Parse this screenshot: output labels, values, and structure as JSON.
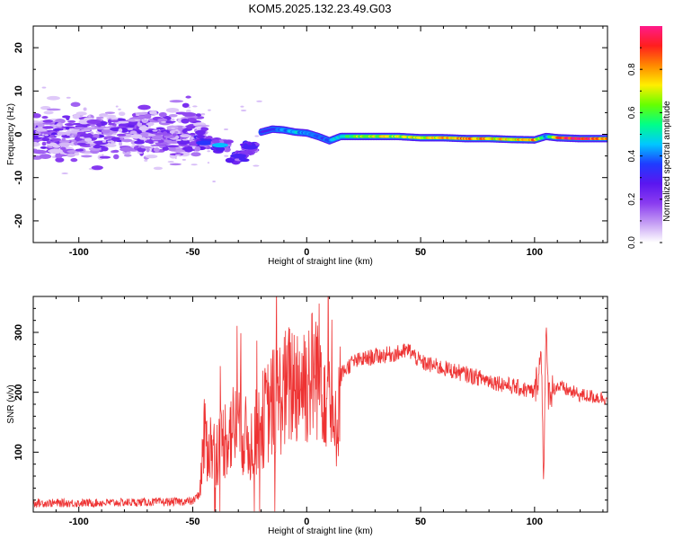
{
  "title": "KOM5.2025.132.23.49.G03",
  "colors": {
    "series_line": "#ee3333",
    "axis": "#000000",
    "colormap": [
      "#ffffff",
      "#c49cf4",
      "#8a3cf0",
      "#5a16f0",
      "#1f3cff",
      "#00c8ff",
      "#00ff88",
      "#66ff00",
      "#ffee00",
      "#ff8800",
      "#ff1e1e",
      "#ff1a8a"
    ]
  },
  "chart_data": [
    {
      "type": "heatmap",
      "xlabel": "Height of straight line (km)",
      "ylabel": "Frequency (Hz)",
      "xlim": [
        -120,
        132
      ],
      "ylim": [
        -25,
        25
      ],
      "x_ticks": [
        -100,
        -50,
        0,
        50,
        100
      ],
      "y_ticks": [
        -20,
        -10,
        0,
        10,
        20
      ],
      "grid": false,
      "colorbar": {
        "label": "Normalized spectral amplitude",
        "range": [
          0,
          1
        ],
        "ticks": [
          "0.0",
          "0.2",
          "0.4",
          "0.6",
          "0.8"
        ]
      },
      "ridge": {
        "description_values": "dominant frequency trace (Hz) vs height (km)",
        "x": [
          -20,
          -15,
          -10,
          -5,
          0,
          5,
          10,
          15,
          20,
          30,
          40,
          50,
          60,
          70,
          80,
          90,
          100,
          105,
          110,
          120,
          132
        ],
        "y": [
          0.5,
          1.2,
          1.0,
          0.5,
          0.3,
          -0.5,
          -1.5,
          -0.5,
          -0.5,
          -0.5,
          -0.5,
          -0.8,
          -0.8,
          -1.0,
          -1.0,
          -1.2,
          -1.3,
          -0.5,
          -0.8,
          -1.0,
          -1.0
        ],
        "amplitude": [
          0.3,
          0.35,
          0.4,
          0.45,
          0.4,
          0.35,
          0.4,
          0.5,
          0.6,
          0.7,
          0.65,
          0.7,
          0.75,
          0.8,
          0.75,
          0.7,
          0.8,
          0.4,
          0.9,
          0.95,
          0.8
        ]
      },
      "clusters": [
        {
          "x": -45,
          "y": -2,
          "amplitude": 0.35
        },
        {
          "x": -38,
          "y": -2.5,
          "amplitude": 0.45
        },
        {
          "x": -30,
          "y": -5,
          "amplitude": 0.3
        },
        {
          "x": -25,
          "y": -3,
          "amplitude": 0.3
        }
      ]
    },
    {
      "type": "line",
      "xlabel": "Height of straight line (km)",
      "ylabel": "SNR (v/v)",
      "xlim": [
        -120,
        132
      ],
      "ylim": [
        0,
        360
      ],
      "x_ticks": [
        -100,
        -50,
        0,
        50,
        100
      ],
      "y_ticks": [
        100,
        200,
        300
      ],
      "grid": false,
      "series": [
        {
          "x": [
            -120,
            -100,
            -80,
            -60,
            -50,
            -47,
            -45,
            -40,
            -35,
            -30,
            -25,
            -20,
            -15,
            -10,
            -5,
            0,
            5,
            10,
            12,
            15,
            20,
            30,
            40,
            45,
            50,
            60,
            70,
            80,
            90,
            100,
            103,
            104,
            105,
            106,
            110,
            120,
            132
          ],
          "y": [
            15,
            15,
            16,
            17,
            18,
            30,
            120,
            100,
            130,
            150,
            110,
            150,
            180,
            200,
            220,
            220,
            240,
            200,
            110,
            230,
            250,
            260,
            265,
            270,
            250,
            240,
            230,
            220,
            210,
            200,
            260,
            60,
            300,
            200,
            210,
            195,
            190
          ]
        }
      ]
    }
  ]
}
